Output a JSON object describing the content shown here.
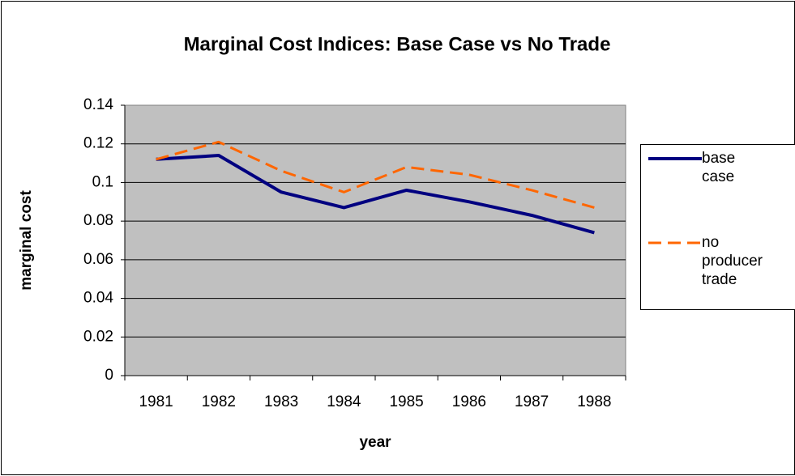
{
  "chart_data": {
    "type": "line",
    "title": "Marginal Cost Indices: Base Case vs No Trade",
    "x_label": "year",
    "y_label": "marginal cost",
    "categories": [
      "1981",
      "1982",
      "1983",
      "1984",
      "1985",
      "1986",
      "1987",
      "1988"
    ],
    "series": [
      {
        "name": "base case",
        "color": "#000080",
        "dash": "solid",
        "values": [
          0.112,
          0.114,
          0.095,
          0.087,
          0.096,
          0.09,
          0.083,
          0.074
        ]
      },
      {
        "name": "no producer trade",
        "color": "#ff6600",
        "dash": "dashed",
        "values": [
          0.112,
          0.121,
          0.106,
          0.095,
          0.108,
          0.104,
          0.096,
          0.087
        ]
      }
    ],
    "ylim": [
      0,
      0.14
    ],
    "yticks": [
      0,
      0.02,
      0.04,
      0.06,
      0.08,
      0.1,
      0.12,
      0.14
    ],
    "grid": true,
    "legend": "right"
  }
}
